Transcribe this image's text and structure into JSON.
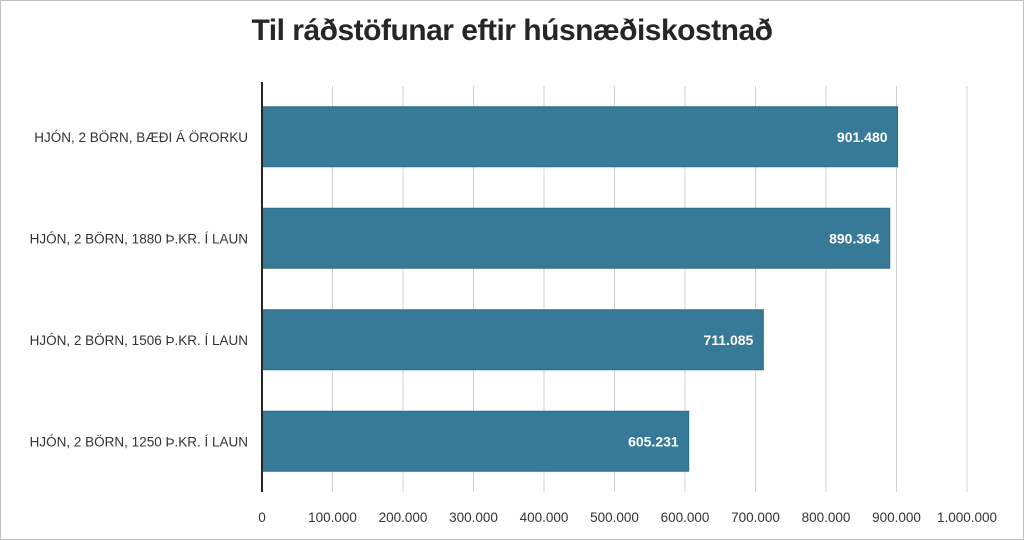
{
  "chart_data": {
    "type": "bar",
    "orientation": "horizontal",
    "title": "Til ráðstöfunar eftir húsnæðiskostnað",
    "categories": [
      "HJÓN, 2 BÖRN, BÆÐI Á ÖRORKU",
      "HJÓN, 2 BÖRN, 1880 Þ.KR. Í LAUN",
      "HJÓN, 2 BÖRN, 1506 Þ.KR. Í LAUN",
      "HJÓN, 2 BÖRN, 1250 Þ.KR. Í LAUN"
    ],
    "values": [
      901480,
      890364,
      711085,
      605231
    ],
    "value_labels": [
      "901.480",
      "890.364",
      "711.085",
      "605.231"
    ],
    "xlim": [
      0,
      1000000
    ],
    "x_ticks": [
      0,
      100000,
      200000,
      300000,
      400000,
      500000,
      600000,
      700000,
      800000,
      900000,
      1000000
    ],
    "x_tick_labels": [
      "0",
      "100.000",
      "200.000",
      "300.000",
      "400.000",
      "500.000",
      "600.000",
      "700.000",
      "800.000",
      "900.000",
      "1.000.000"
    ],
    "grid": true,
    "legend": "none",
    "colors": {
      "bar": "#367A97",
      "bar_stroke": "#2E6C86",
      "grid": "#d0d0d0",
      "axis": "#262626",
      "text": "#333333"
    }
  }
}
